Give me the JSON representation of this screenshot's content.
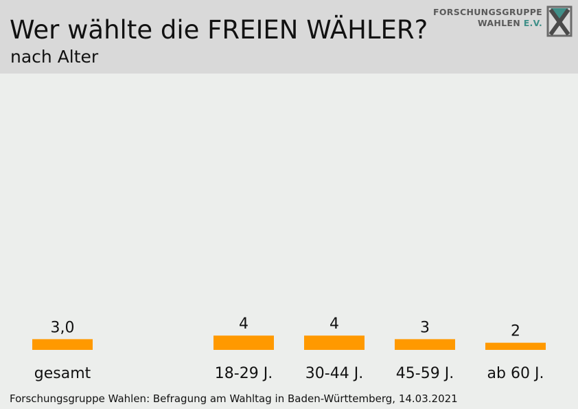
{
  "header": {
    "title": "Wer wählte die FREIEN WÄHLER?",
    "subtitle": "nach Alter",
    "logo_line1": "FORSCHUNGSGRUPPE",
    "logo_line2_a": "WAHLEN ",
    "logo_line2_b": "E.V."
  },
  "colors": {
    "bar": "#ff9900",
    "header_bg": "#d9d9d9",
    "background": "#eceeec",
    "logo_accent": "#3f8f88"
  },
  "chart_data": {
    "type": "bar",
    "title": "Wer wählte die FREIEN WÄHLER?",
    "subtitle": "nach Alter",
    "categories": [
      "gesamt",
      "18-29 J.",
      "30-44 J.",
      "45-59 J.",
      "ab 60 J."
    ],
    "values": [
      3.0,
      4,
      4,
      3,
      2
    ],
    "value_labels": [
      "3,0",
      "4",
      "4",
      "3",
      "2"
    ],
    "ylim": [
      0,
      40
    ],
    "grid": false,
    "legend": "none"
  },
  "footer": {
    "source": "Forschungsgruppe Wahlen: Befragung am Wahltag in Baden-Württemberg, 14.03.2021"
  }
}
